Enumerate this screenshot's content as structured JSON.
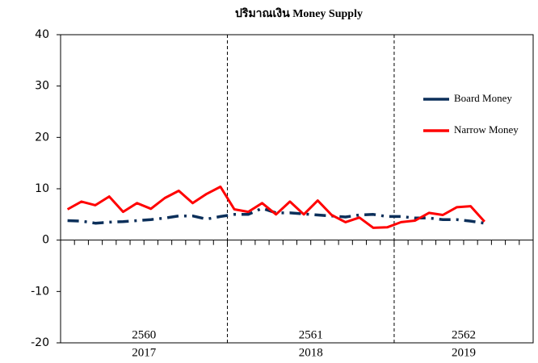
{
  "chart_data": {
    "type": "line",
    "title": "ปริมาณเงิน Money Supply",
    "categories": [
      null,
      null,
      null,
      null,
      null,
      null,
      null,
      null,
      null,
      null,
      null,
      null,
      null,
      null,
      null,
      null,
      null,
      null,
      null,
      null,
      null,
      null,
      null,
      null,
      null,
      null,
      null,
      null,
      null,
      null,
      null,
      null,
      null,
      null
    ],
    "x_groups": [
      {
        "label": "2560",
        "sublabel": "2017"
      },
      {
        "label": "2561",
        "sublabel": "2018"
      },
      {
        "label": "2562",
        "sublabel": "2019"
      }
    ],
    "series": [
      {
        "name": "Board  Money",
        "color": "#0b2f5a",
        "dash": "dash-dot",
        "values": [
          3.8,
          3.7,
          3.3,
          3.5,
          3.6,
          3.8,
          4.0,
          4.3,
          4.7,
          4.7,
          4.1,
          4.6,
          5.0,
          5.0,
          6.2,
          5.3,
          5.3,
          5.1,
          4.9,
          4.7,
          4.5,
          4.9,
          5.0,
          4.6,
          4.6,
          4.3,
          4.3,
          4.0,
          4.0,
          3.7,
          3.3,
          null,
          null,
          null
        ]
      },
      {
        "name": "Narrow Money",
        "color": "#ff0000",
        "dash": "solid",
        "values": [
          6.0,
          7.5,
          6.8,
          8.5,
          5.5,
          7.2,
          6.1,
          8.2,
          9.6,
          7.2,
          9.0,
          10.4,
          6.0,
          5.5,
          7.2,
          5.0,
          7.5,
          5.0,
          7.7,
          4.9,
          3.5,
          4.4,
          2.4,
          2.5,
          3.5,
          3.8,
          5.3,
          4.9,
          6.4,
          6.6,
          3.6,
          null,
          null,
          null
        ]
      }
    ],
    "ylim": [
      -20,
      40
    ],
    "yticks": [
      40,
      30,
      20,
      10,
      0,
      -10,
      -20
    ],
    "grid": false,
    "legend": "right"
  }
}
